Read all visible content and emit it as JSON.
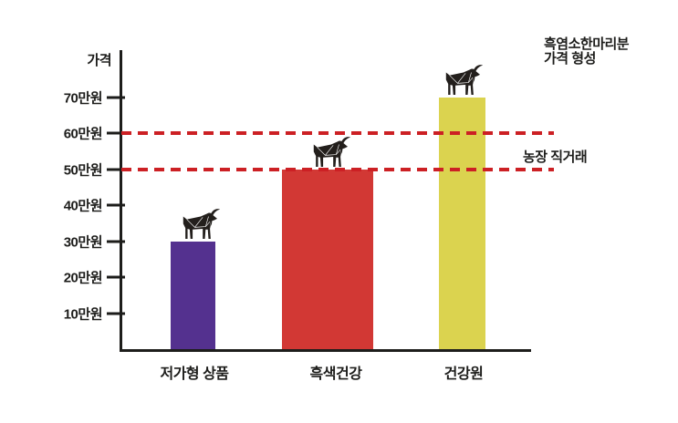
{
  "chart_data": {
    "type": "bar",
    "title": "흑염소한마리분 가격 형성",
    "title_lines": [
      "흑염소한마리분",
      "가격 형성"
    ],
    "ylabel": "가격",
    "categories": [
      "저가형 상품",
      "흑색건강",
      "건강원"
    ],
    "values": [
      30,
      50,
      70
    ],
    "value_unit": "만원",
    "yticks": [
      "10만원",
      "20만원",
      "30만원",
      "40만원",
      "50만원",
      "60만원",
      "70만원"
    ],
    "ytick_values": [
      10,
      20,
      30,
      40,
      50,
      60,
      70
    ],
    "ylim": [
      0,
      80
    ],
    "grid": false,
    "legend": false,
    "bar_colors": [
      "#54318f",
      "#d23834",
      "#dbd34f"
    ],
    "reference_lines": [
      {
        "value": 60,
        "color": "#cc2024",
        "style": "dashed"
      },
      {
        "value": 50,
        "color": "#cc2024",
        "style": "dashed"
      }
    ],
    "annotation": "농장 직거래",
    "bar_top_icon": "goat-icon"
  },
  "colors": {
    "background": "#ffffff",
    "axis": "#1d1d1b",
    "text": "#1d1d1b",
    "dashed_line": "#cc2024",
    "goat": "#231f1c"
  }
}
